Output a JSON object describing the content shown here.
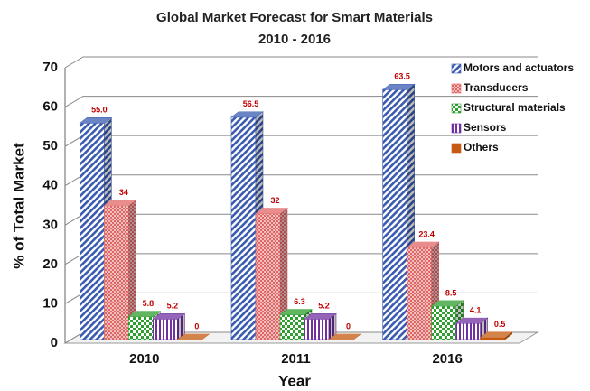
{
  "chart_data": {
    "type": "bar3d",
    "title": "Global Market Forecast for Smart Materials",
    "subtitle": "2010 - 2016",
    "x_label": "Year",
    "y_label": "% of Total Market",
    "categories": [
      "2010",
      "2011",
      "2016"
    ],
    "series": [
      {
        "name": "Motors and actuators",
        "color": "#3a5bb0",
        "values": [
          55.0,
          56.5,
          63.5
        ],
        "value_labels": [
          "55.0",
          "56.5",
          "63.5"
        ]
      },
      {
        "name": "Transducers",
        "color": "#e06666",
        "values": [
          34,
          32,
          23.4
        ]
      },
      {
        "name": "Structural materials",
        "color": "#2e9e2e",
        "values": [
          5.8,
          6.3,
          8.5
        ]
      },
      {
        "name": "Sensors",
        "color": "#7030a0",
        "values": [
          5.2,
          5.2,
          4.1
        ]
      },
      {
        "name": "Others",
        "color": "#c55a11",
        "values": [
          0,
          0,
          0.5
        ]
      }
    ],
    "ylim": [
      0,
      70
    ],
    "yticks": [
      0,
      10,
      20,
      30,
      40,
      50,
      60,
      70
    ],
    "grid": true,
    "legend": "top-right"
  }
}
